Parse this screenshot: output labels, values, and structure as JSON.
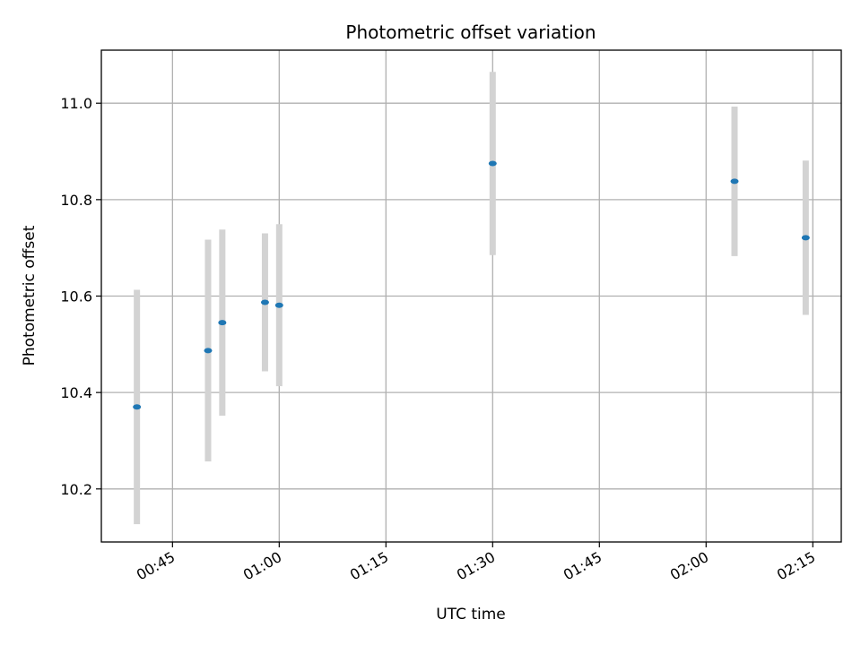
{
  "chart_data": {
    "type": "scatter",
    "title": "Photometric offset variation",
    "xlabel": "UTC time",
    "ylabel": "Photometric offset",
    "x_axis": {
      "kind": "time",
      "min": "00:35",
      "max": "02:19",
      "ticks": [
        "00:45",
        "01:00",
        "01:15",
        "01:30",
        "01:45",
        "02:00",
        "02:15"
      ]
    },
    "y_axis": {
      "min": 10.09,
      "max": 11.11,
      "ticks": [
        "10.2",
        "10.4",
        "10.6",
        "10.8",
        "11.0"
      ]
    },
    "grid": true,
    "colors": {
      "point": "#1f77b4",
      "errorbar": "#d3d3d3",
      "grid": "#b0b0b0"
    },
    "points": [
      {
        "x": "00:40",
        "y": 10.37,
        "yerr": 0.243
      },
      {
        "x": "00:50",
        "y": 10.487,
        "yerr": 0.23
      },
      {
        "x": "00:52",
        "y": 10.545,
        "yerr": 0.193
      },
      {
        "x": "00:58",
        "y": 10.587,
        "yerr": 0.143
      },
      {
        "x": "01:00",
        "y": 10.581,
        "yerr": 0.168
      },
      {
        "x": "01:30",
        "y": 10.875,
        "yerr": 0.19
      },
      {
        "x": "02:04",
        "y": 10.838,
        "yerr": 0.155
      },
      {
        "x": "02:14",
        "y": 10.721,
        "yerr": 0.16
      }
    ]
  }
}
